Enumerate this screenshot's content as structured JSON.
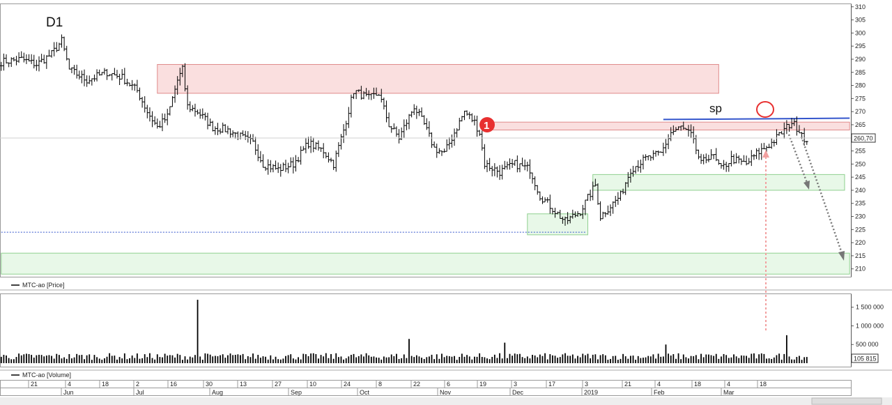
{
  "timeframe": "D1",
  "price_legend": "MTC-ao [Price]",
  "volume_legend": "MTC-ao [Volume]",
  "last_price": "260,70",
  "last_volume": "105 815",
  "annotation_sp": "sp",
  "marker_1": "1",
  "colors": {
    "resistance_zone": "#f6c9c9",
    "support_zone": "#d6f2d6",
    "trendline": "#3355cc",
    "arrow": "#777777",
    "highlight": "#e83030"
  },
  "price_axis": {
    "ticks": [
      "310",
      "305",
      "300",
      "295",
      "290",
      "285",
      "280",
      "275",
      "270",
      "265",
      "260",
      "255",
      "250",
      "245",
      "240",
      "235",
      "230",
      "225",
      "220",
      "215",
      "210"
    ],
    "ylim": [
      207,
      311
    ]
  },
  "volume_axis": {
    "ticks": [
      "1 500 000",
      "1 000 000",
      "500 000"
    ],
    "ylim": [
      0,
      1850000
    ]
  },
  "date_axis": {
    "days": [
      "21",
      "4",
      "18",
      "2",
      "16",
      "30",
      "13",
      "27",
      "10",
      "24",
      "8",
      "22",
      "6",
      "19",
      "3",
      "17",
      "3",
      "21",
      "4",
      "18",
      "4",
      "18"
    ],
    "months": [
      "Jun",
      "Jul",
      "Aug",
      "Sep",
      "Oct",
      "Nov",
      "Dec",
      "2019",
      "Feb",
      "Mar"
    ]
  },
  "chart_data": {
    "type": "ohlc",
    "title": "D1",
    "series": [
      {
        "name": "MTC-ao [Price]",
        "anchors": [
          [
            0,
            289
          ],
          [
            8,
            290
          ],
          [
            14,
            288
          ],
          [
            20,
            292
          ],
          [
            24,
            297
          ],
          [
            27,
            286
          ],
          [
            34,
            282
          ],
          [
            42,
            285
          ],
          [
            48,
            283
          ],
          [
            54,
            278
          ],
          [
            58,
            270
          ],
          [
            62,
            264
          ],
          [
            66,
            268
          ],
          [
            70,
            282
          ],
          [
            72,
            286
          ],
          [
            74,
            272
          ],
          [
            78,
            270
          ],
          [
            84,
            264
          ],
          [
            90,
            263
          ],
          [
            96,
            260
          ],
          [
            100,
            258
          ],
          [
            104,
            250
          ],
          [
            110,
            248
          ],
          [
            116,
            250
          ],
          [
            122,
            258
          ],
          [
            128,
            255
          ],
          [
            132,
            250
          ],
          [
            136,
            263
          ],
          [
            140,
            278
          ],
          [
            146,
            275
          ],
          [
            150,
            277
          ],
          [
            154,
            265
          ],
          [
            158,
            260
          ],
          [
            164,
            272
          ],
          [
            168,
            265
          ],
          [
            172,
            256
          ],
          [
            176,
            254
          ],
          [
            180,
            262
          ],
          [
            184,
            270
          ],
          [
            188,
            266
          ],
          [
            190,
            262
          ],
          [
            192,
            250
          ],
          [
            198,
            247
          ],
          [
            204,
            250
          ],
          [
            210,
            248
          ],
          [
            214,
            238
          ],
          [
            220,
            232
          ],
          [
            224,
            228
          ],
          [
            230,
            232
          ],
          [
            236,
            242
          ],
          [
            238,
            230
          ],
          [
            242,
            234
          ],
          [
            246,
            238
          ],
          [
            250,
            248
          ],
          [
            256,
            252
          ],
          [
            262,
            254
          ],
          [
            266,
            262
          ],
          [
            270,
            264
          ],
          [
            274,
            261
          ],
          [
            278,
            250
          ],
          [
            282,
            254
          ],
          [
            286,
            248
          ],
          [
            290,
            252
          ],
          [
            296,
            250
          ],
          [
            300,
            254
          ],
          [
            306,
            258
          ],
          [
            310,
            262
          ],
          [
            314,
            266
          ],
          [
            318,
            262
          ],
          [
            320,
            258
          ]
        ]
      },
      {
        "name": "MTC-ao [Volume]",
        "spikes": [
          [
            78,
            1700000
          ],
          [
            162,
            650000
          ],
          [
            200,
            550000
          ],
          [
            264,
            500000
          ],
          [
            312,
            750000
          ]
        ],
        "base": 150000
      }
    ],
    "annotations": [
      {
        "kind": "resistance_zone",
        "from_bar": 62,
        "to_bar": 285,
        "y": [
          277,
          288
        ]
      },
      {
        "kind": "resistance_zone",
        "from_bar": 194,
        "to_bar": 337,
        "y": [
          263,
          266
        ]
      },
      {
        "kind": "support_zone",
        "from_bar": 209,
        "to_bar": 233,
        "y": [
          223,
          231
        ]
      },
      {
        "kind": "support_zone",
        "from_bar": 235,
        "to_bar": 335,
        "y": [
          240,
          246
        ]
      },
      {
        "kind": "support_zone",
        "from_bar": 0,
        "to_bar": 337,
        "y": [
          208,
          216
        ]
      },
      {
        "kind": "trendline",
        "from_bar": 263,
        "to_bar": 337,
        "y": [
          267,
          267.5
        ]
      },
      {
        "kind": "dotted_level",
        "from_bar": 0,
        "to_bar": 232,
        "y": 224
      }
    ]
  }
}
